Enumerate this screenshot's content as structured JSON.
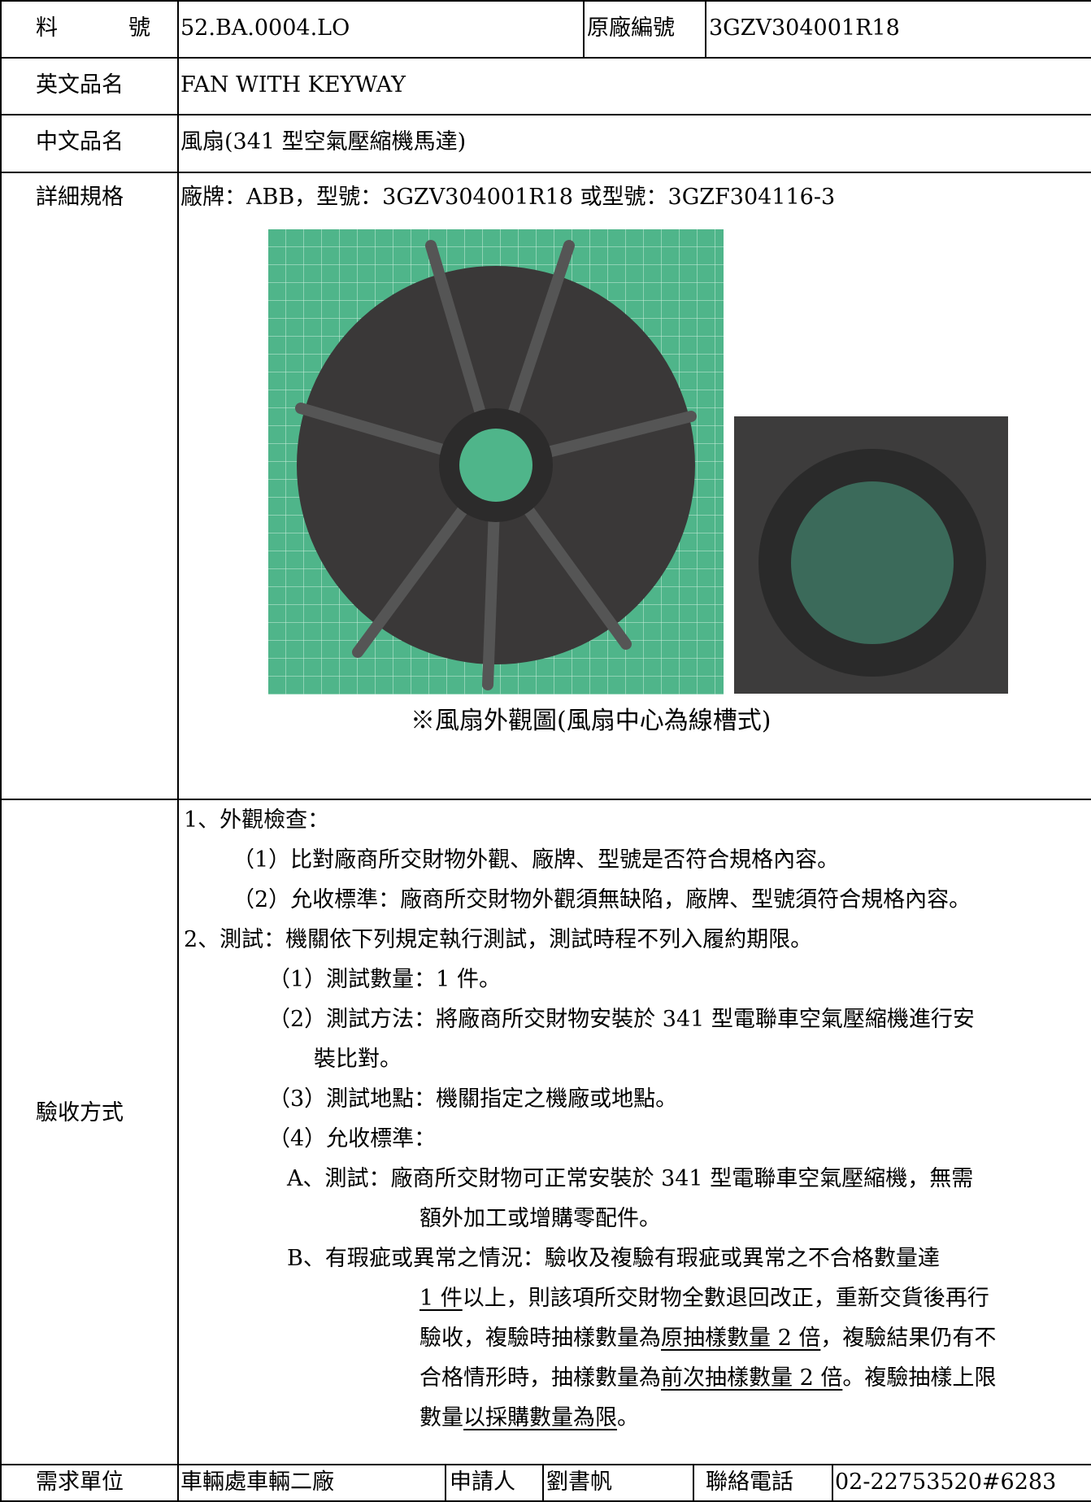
{
  "table": {
    "part_no_label": "料　號",
    "part_no": "52.BA.0004.LO",
    "orig_no_label": "原廠編號",
    "orig_no": "3GZV304001R18",
    "en_name_label": "英文品名",
    "en_name": "FAN WITH KEYWAY",
    "zh_name_label": "中文品名",
    "zh_name": "風扇(341 型空氣壓縮機馬達)",
    "spec_label": "詳細規格",
    "spec": "廠牌：ABB，型號：3GZV304001R18 或型號：3GZF304116-3",
    "figure_caption": "※風扇外觀圖(風扇中心為線槽式)",
    "accept_label": "驗收方式",
    "accept_lines": [
      [
        {
          "text": "1、外觀檢查："
        }
      ],
      [
        {
          "text": "（1）比對廠商所交財物外觀、廠牌、型號是否符合規格內容。"
        }
      ],
      [
        {
          "text": "（2）允收標準：廠商所交財物外觀須無缺陷，廠牌、型號須符合規格內容。"
        }
      ],
      [
        {
          "text": "2、測試：機關依下列規定執行測試，測試時程不列入履約期限。"
        }
      ],
      [
        {
          "text": "（1）測試數量：1 件。"
        }
      ],
      [
        {
          "text": "（2）測試方法：將廠商所交財物安裝於 341 型電聯車空氣壓縮機進行安"
        }
      ],
      [
        {
          "text": "裝比對。"
        }
      ],
      [
        {
          "text": "（3）測試地點：機關指定之機廠或地點。"
        }
      ],
      [
        {
          "text": "（4）允收標準："
        }
      ],
      [
        {
          "text": "A、測試：廠商所交財物可正常安裝於 341 型電聯車空氣壓縮機，無需"
        }
      ],
      [
        {
          "text": "額外加工或增購零配件。"
        }
      ],
      [
        {
          "text": "B、有瑕疵或異常之情況：驗收及複驗有瑕疵或異常之不合格數量達"
        }
      ],
      [
        {
          "text": "1 件",
          "underline": true
        },
        {
          "text": "以上，則該項所交財物全數退回改正，重新交貨後再行"
        }
      ],
      [
        {
          "text": "驗收，複驗時抽樣數量為"
        },
        {
          "text": "原抽樣數量 2 倍",
          "underline": true
        },
        {
          "text": "，複驗結果仍有不"
        }
      ],
      [
        {
          "text": "合格情形時，抽樣數量為"
        },
        {
          "text": "前次抽樣數量 2 倍",
          "underline": true
        },
        {
          "text": "。複驗抽樣上限"
        }
      ],
      [
        {
          "text": "數量"
        },
        {
          "text": "以採購數量為限",
          "underline": true
        },
        {
          "text": "。"
        }
      ]
    ],
    "unit_label": "需求單位",
    "unit": "車輛處車輛二廠",
    "applicant_label": "申請人",
    "applicant": "劉書帆",
    "phone_label": "聯絡電話",
    "phone": "02-22753520#6283"
  }
}
